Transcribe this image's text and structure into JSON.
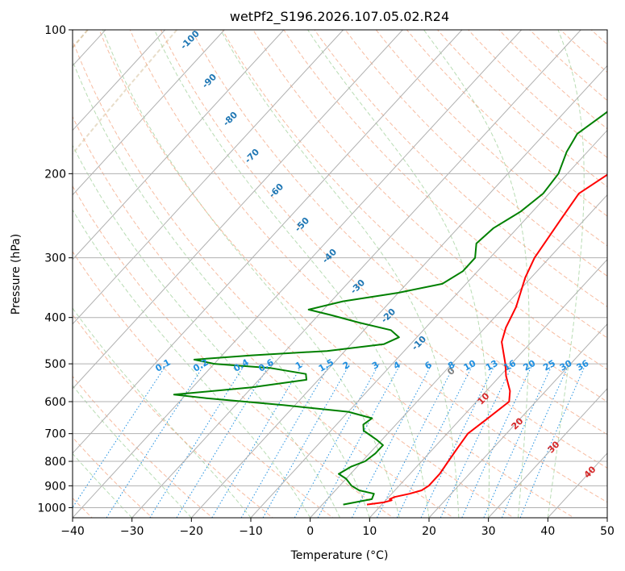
{
  "chart_data": {
    "type": "line",
    "title": "wetPf2_S196.2026.107.05.02.R24",
    "xlabel": "Temperature (°C)",
    "ylabel": "Pressure (hPa)",
    "xlim": [
      -40,
      50
    ],
    "ylim": [
      1050,
      100
    ],
    "y_scale": "log",
    "grid": true,
    "x_ticks": [
      "−40",
      "−30",
      "−20",
      "−10",
      "0",
      "10",
      "20",
      "30",
      "40",
      "50"
    ],
    "y_ticks": [
      "1000",
      "900",
      "800",
      "700",
      "600",
      "500",
      "400",
      "300",
      "200",
      "100"
    ],
    "series": [
      {
        "name": "",
        "color": "#ff0000",
        "pressure": [
          985,
          975,
          965,
          960,
          950,
          935,
          920,
          900,
          850,
          800,
          750,
          700,
          650,
          600,
          570,
          530,
          500,
          450,
          420,
          380,
          330,
          300,
          250,
          220,
          200,
          180,
          165,
          150,
          135,
          120,
          110,
          100
        ],
        "temperature": [
          7.5,
          10.0,
          11.0,
          10.5,
          11.0,
          13.0,
          14.5,
          15.0,
          15.0,
          14.5,
          14.0,
          13.5,
          14.5,
          15.5,
          14.0,
          11.0,
          9.0,
          5.0,
          3.5,
          2.0,
          -1.0,
          -2.5,
          -4.0,
          -5.0,
          -3.0,
          -0.5,
          2.5,
          5.0,
          8.0,
          11.5,
          12.0,
          13.0
        ]
      },
      {
        "name": "",
        "color": "#008000",
        "pressure": [
          985,
          960,
          935,
          920,
          900,
          870,
          850,
          820,
          800,
          770,
          740,
          720,
          690,
          670,
          650,
          630,
          610,
          590,
          580,
          560,
          540,
          525,
          510,
          500,
          490,
          480,
          470,
          455,
          440,
          425,
          410,
          395,
          385,
          370,
          355,
          340,
          320,
          300,
          280,
          260,
          240,
          220,
          200,
          180,
          165,
          150,
          135,
          120,
          110,
          100
        ],
        "temperature": [
          3.5,
          7.5,
          7.0,
          4.0,
          2.0,
          0.0,
          -2.0,
          -1.0,
          0.5,
          1.0,
          1.0,
          -1.0,
          -4.5,
          -5.5,
          -5.0,
          -10.0,
          -22.0,
          -36.0,
          -42.0,
          -30.0,
          -22.0,
          -23.0,
          -30.0,
          -40.0,
          -44.0,
          -35.0,
          -23.0,
          -14.5,
          -13.0,
          -15.5,
          -22.0,
          -28.0,
          -32.5,
          -28.0,
          -20.0,
          -14.0,
          -12.5,
          -12.5,
          -14.5,
          -14.0,
          -12.0,
          -11.0,
          -11.5,
          -13.5,
          -14.5,
          -13.0,
          -11.5,
          -10.0,
          -7.5,
          -5.0
        ]
      }
    ],
    "dry_adiabat_labels": [
      "-100",
      "-90",
      "-80",
      "-70",
      "-60",
      "-50",
      "-40",
      "-30",
      "-20",
      "-10",
      "0",
      "10",
      "20",
      "30",
      "40"
    ],
    "mixing_ratio_labels": [
      "0.1",
      "0.2",
      "0.4",
      "0.6",
      "1",
      "1.5",
      "2",
      "3",
      "4",
      "6",
      "8",
      "10",
      "13",
      "16",
      "20",
      "25",
      "30",
      "36"
    ],
    "colors": {
      "dry_adiabat": "#f4a582",
      "moist_adiabat": "#a6d3a0",
      "mixing_ratio": "#1f8fe0",
      "isotherm": "#b0b0b0",
      "isotherm_zero_label": "#808080",
      "isotherm_label_warm": "#d62728",
      "adiabat_label": "#1f77b4",
      "extra_curve": "#d9c6a5"
    }
  }
}
